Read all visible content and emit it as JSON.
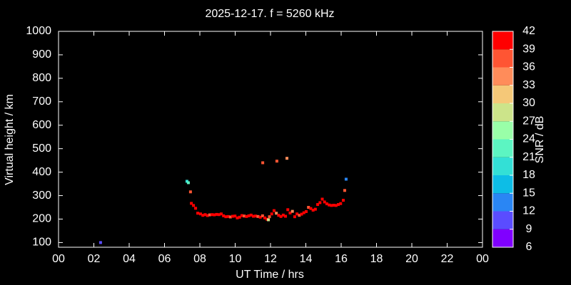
{
  "chart_data": {
    "type": "scatter",
    "title": "2025-12-17. f = 5260 kHz",
    "xlabel": "UT Time / hrs",
    "ylabel": "Virtual height / km",
    "colorbar_label": "SNR / dB",
    "x": [
      2.38,
      7.27,
      7.35,
      7.47,
      7.52,
      7.64,
      7.76,
      7.88,
      8.04,
      8.17,
      8.3,
      8.43,
      8.56,
      8.69,
      8.82,
      8.95,
      9.08,
      9.21,
      9.34,
      9.47,
      9.6,
      9.73,
      9.86,
      9.99,
      10.12,
      10.25,
      10.38,
      10.51,
      10.64,
      10.77,
      10.9,
      11.03,
      11.16,
      11.29,
      11.42,
      11.55,
      11.56,
      11.68,
      11.81,
      11.88,
      11.94,
      12.07,
      12.2,
      12.33,
      12.36,
      12.46,
      12.59,
      12.72,
      12.85,
      12.93,
      12.98,
      13.11,
      13.24,
      13.37,
      13.5,
      13.63,
      13.76,
      13.89,
      14.02,
      14.15,
      14.28,
      14.41,
      14.54,
      14.67,
      14.8,
      14.93,
      15.06,
      15.19,
      15.32,
      15.45,
      15.58,
      15.71,
      15.84,
      15.97,
      16.12,
      16.2,
      16.28
    ],
    "y": [
      100,
      361,
      355,
      316,
      267,
      258,
      246,
      225,
      222,
      216,
      219,
      215,
      218,
      219,
      218,
      220,
      219,
      222,
      214,
      210,
      211,
      209,
      212,
      213,
      205,
      208,
      215,
      213,
      211,
      214,
      217,
      212,
      213,
      211,
      208,
      214,
      440,
      205,
      199,
      197,
      210,
      222,
      236,
      225,
      447,
      216,
      211,
      217,
      212,
      459,
      240,
      226,
      233,
      210,
      222,
      216,
      221,
      227,
      232,
      250,
      245,
      238,
      242,
      262,
      270,
      285,
      273,
      265,
      260,
      258,
      259,
      258,
      262,
      266,
      280,
      322,
      370
    ],
    "snr": [
      10,
      20,
      23,
      37,
      40,
      40,
      40,
      40,
      40,
      40,
      40,
      40,
      37,
      40,
      40,
      40,
      40,
      40,
      40,
      40,
      40,
      37,
      40,
      40,
      40,
      40,
      40,
      37,
      40,
      40,
      40,
      40,
      40,
      37,
      40,
      37,
      37,
      40,
      40,
      27,
      37,
      40,
      40,
      34,
      37,
      40,
      40,
      40,
      40,
      34,
      40,
      40,
      34,
      40,
      40,
      37,
      40,
      40,
      40,
      37,
      40,
      40,
      40,
      40,
      40,
      40,
      40,
      40,
      40,
      40,
      40,
      40,
      40,
      40,
      40,
      37,
      14
    ],
    "xlim": [
      0,
      24
    ],
    "ylim": [
      80,
      1000
    ],
    "xticks": [
      {
        "value": 0,
        "label": "00"
      },
      {
        "value": 2,
        "label": "02"
      },
      {
        "value": 4,
        "label": "04"
      },
      {
        "value": 6,
        "label": "06"
      },
      {
        "value": 8,
        "label": "08"
      },
      10,
      12,
      14,
      16,
      18,
      20,
      22,
      {
        "value": 24,
        "label": "00"
      }
    ],
    "yticks": [
      100,
      200,
      300,
      400,
      500,
      600,
      700,
      800,
      900,
      1000
    ],
    "clim": [
      6,
      42
    ],
    "cticks": [
      6,
      9,
      12,
      15,
      18,
      21,
      24,
      27,
      30,
      33,
      36,
      39,
      42
    ],
    "colormap": [
      "#8000ff",
      "#5a4cff",
      "#2a86f4",
      "#0dbde6",
      "#33e0d6",
      "#5cf5c2",
      "#99ffa8",
      "#cce48a",
      "#f5c878",
      "#ff8c5a",
      "#ff5533",
      "#ff0000"
    ],
    "background": "#000000"
  }
}
